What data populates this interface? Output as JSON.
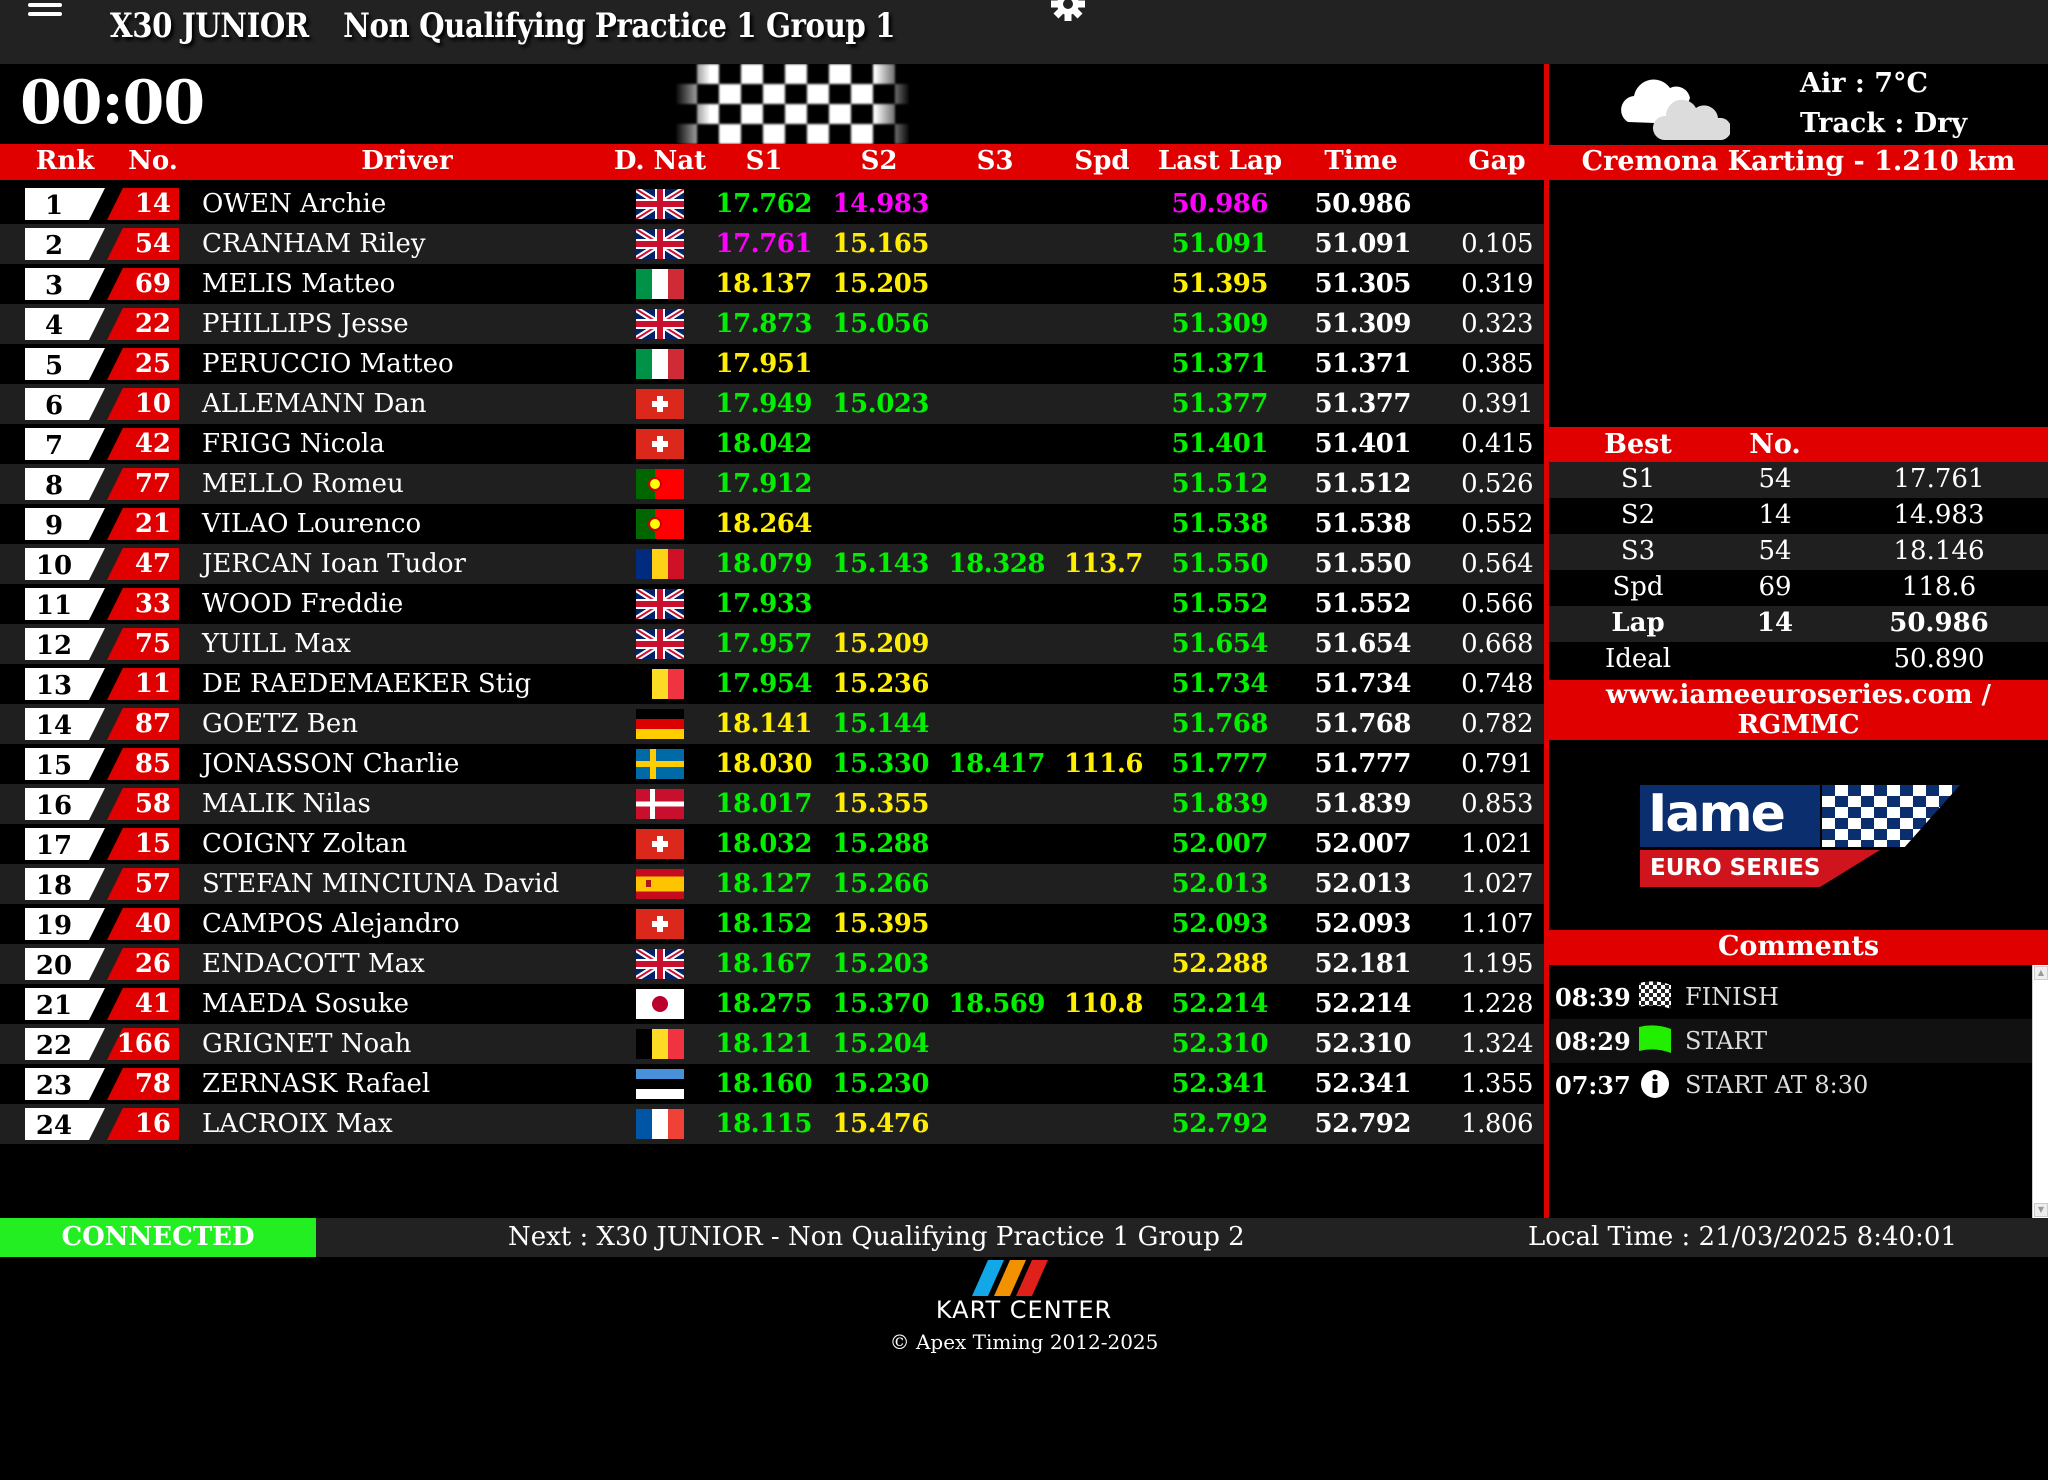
{
  "header": {
    "category": "X30 JUNIOR",
    "session": "Non Qualifying Practice 1 Group 1",
    "menu_icon": "hamburger-icon",
    "settings_icon": "gear-icon"
  },
  "timer": "00:00",
  "flag_status": "checkered-flag",
  "table": {
    "headers": {
      "rnk": "Rnk",
      "no": "No.",
      "driver": "Driver",
      "nat": "D. Nat",
      "s1": "S1",
      "s2": "S2",
      "s3": "S3",
      "spd": "Spd",
      "last": "Last Lap",
      "time": "Time",
      "gap": "Gap"
    },
    "colors": {
      "g": "#00f000",
      "y": "#ffee00",
      "m": "#ff00ff"
    },
    "rows": [
      {
        "rk": "1",
        "no": "14",
        "driver": "OWEN Archie",
        "nat": "gb",
        "s1": "17.762",
        "s1c": "g",
        "s2": "14.983",
        "s2c": "m",
        "s3": "",
        "s3c": "",
        "spd": "",
        "spdc": "",
        "last": "50.986",
        "lastc": "m",
        "time": "50.986",
        "gap": ""
      },
      {
        "rk": "2",
        "no": "54",
        "driver": "CRANHAM Riley",
        "nat": "gb",
        "s1": "17.761",
        "s1c": "m",
        "s2": "15.165",
        "s2c": "y",
        "s3": "",
        "s3c": "",
        "spd": "",
        "spdc": "",
        "last": "51.091",
        "lastc": "g",
        "time": "51.091",
        "gap": "0.105"
      },
      {
        "rk": "3",
        "no": "69",
        "driver": "MELIS Matteo",
        "nat": "it",
        "s1": "18.137",
        "s1c": "y",
        "s2": "15.205",
        "s2c": "y",
        "s3": "",
        "s3c": "",
        "spd": "",
        "spdc": "",
        "last": "51.395",
        "lastc": "y",
        "time": "51.305",
        "gap": "0.319"
      },
      {
        "rk": "4",
        "no": "22",
        "driver": "PHILLIPS Jesse",
        "nat": "gb",
        "s1": "17.873",
        "s1c": "g",
        "s2": "15.056",
        "s2c": "g",
        "s3": "",
        "s3c": "",
        "spd": "",
        "spdc": "",
        "last": "51.309",
        "lastc": "g",
        "time": "51.309",
        "gap": "0.323"
      },
      {
        "rk": "5",
        "no": "25",
        "driver": "PERUCCIO Matteo",
        "nat": "it",
        "s1": "17.951",
        "s1c": "y",
        "s2": "",
        "s2c": "",
        "s3": "",
        "s3c": "",
        "spd": "",
        "spdc": "",
        "last": "51.371",
        "lastc": "g",
        "time": "51.371",
        "gap": "0.385"
      },
      {
        "rk": "6",
        "no": "10",
        "driver": "ALLEMANN Dan",
        "nat": "ch",
        "s1": "17.949",
        "s1c": "g",
        "s2": "15.023",
        "s2c": "g",
        "s3": "",
        "s3c": "",
        "spd": "",
        "spdc": "",
        "last": "51.377",
        "lastc": "g",
        "time": "51.377",
        "gap": "0.391"
      },
      {
        "rk": "7",
        "no": "42",
        "driver": "FRIGG Nicola",
        "nat": "ch",
        "s1": "18.042",
        "s1c": "g",
        "s2": "",
        "s2c": "",
        "s3": "",
        "s3c": "",
        "spd": "",
        "spdc": "",
        "last": "51.401",
        "lastc": "g",
        "time": "51.401",
        "gap": "0.415"
      },
      {
        "rk": "8",
        "no": "77",
        "driver": "MELLO Romeu",
        "nat": "pt",
        "s1": "17.912",
        "s1c": "g",
        "s2": "",
        "s2c": "",
        "s3": "",
        "s3c": "",
        "spd": "",
        "spdc": "",
        "last": "51.512",
        "lastc": "g",
        "time": "51.512",
        "gap": "0.526"
      },
      {
        "rk": "9",
        "no": "21",
        "driver": "VILAO Lourenco",
        "nat": "pt",
        "s1": "18.264",
        "s1c": "y",
        "s2": "",
        "s2c": "",
        "s3": "",
        "s3c": "",
        "spd": "",
        "spdc": "",
        "last": "51.538",
        "lastc": "g",
        "time": "51.538",
        "gap": "0.552"
      },
      {
        "rk": "10",
        "no": "47",
        "driver": "JERCAN Ioan Tudor",
        "nat": "ro",
        "s1": "18.079",
        "s1c": "g",
        "s2": "15.143",
        "s2c": "g",
        "s3": "18.328",
        "s3c": "g",
        "spd": "113.7",
        "spdc": "y",
        "last": "51.550",
        "lastc": "g",
        "time": "51.550",
        "gap": "0.564"
      },
      {
        "rk": "11",
        "no": "33",
        "driver": "WOOD Freddie",
        "nat": "gb",
        "s1": "17.933",
        "s1c": "g",
        "s2": "",
        "s2c": "",
        "s3": "",
        "s3c": "",
        "spd": "",
        "spdc": "",
        "last": "51.552",
        "lastc": "g",
        "time": "51.552",
        "gap": "0.566"
      },
      {
        "rk": "12",
        "no": "75",
        "driver": "YUILL Max",
        "nat": "gb",
        "s1": "17.957",
        "s1c": "g",
        "s2": "15.209",
        "s2c": "y",
        "s3": "",
        "s3c": "",
        "spd": "",
        "spdc": "",
        "last": "51.654",
        "lastc": "g",
        "time": "51.654",
        "gap": "0.668"
      },
      {
        "rk": "13",
        "no": "11",
        "driver": "DE RAEDEMAEKER Stig",
        "nat": "be",
        "s1": "17.954",
        "s1c": "g",
        "s2": "15.236",
        "s2c": "y",
        "s3": "",
        "s3c": "",
        "spd": "",
        "spdc": "",
        "last": "51.734",
        "lastc": "g",
        "time": "51.734",
        "gap": "0.748"
      },
      {
        "rk": "14",
        "no": "87",
        "driver": "GOETZ Ben",
        "nat": "de",
        "s1": "18.141",
        "s1c": "y",
        "s2": "15.144",
        "s2c": "g",
        "s3": "",
        "s3c": "",
        "spd": "",
        "spdc": "",
        "last": "51.768",
        "lastc": "g",
        "time": "51.768",
        "gap": "0.782"
      },
      {
        "rk": "15",
        "no": "85",
        "driver": "JONASSON Charlie",
        "nat": "se",
        "s1": "18.030",
        "s1c": "y",
        "s2": "15.330",
        "s2c": "g",
        "s3": "18.417",
        "s3c": "g",
        "spd": "111.6",
        "spdc": "y",
        "last": "51.777",
        "lastc": "g",
        "time": "51.777",
        "gap": "0.791"
      },
      {
        "rk": "16",
        "no": "58",
        "driver": "MALIK Nilas",
        "nat": "dk",
        "s1": "18.017",
        "s1c": "g",
        "s2": "15.355",
        "s2c": "y",
        "s3": "",
        "s3c": "",
        "spd": "",
        "spdc": "",
        "last": "51.839",
        "lastc": "g",
        "time": "51.839",
        "gap": "0.853"
      },
      {
        "rk": "17",
        "no": "15",
        "driver": "COIGNY Zoltan",
        "nat": "ch",
        "s1": "18.032",
        "s1c": "g",
        "s2": "15.288",
        "s2c": "g",
        "s3": "",
        "s3c": "",
        "spd": "",
        "spdc": "",
        "last": "52.007",
        "lastc": "g",
        "time": "52.007",
        "gap": "1.021"
      },
      {
        "rk": "18",
        "no": "57",
        "driver": "STEFAN MINCIUNA David",
        "nat": "es",
        "s1": "18.127",
        "s1c": "g",
        "s2": "15.266",
        "s2c": "g",
        "s3": "",
        "s3c": "",
        "spd": "",
        "spdc": "",
        "last": "52.013",
        "lastc": "g",
        "time": "52.013",
        "gap": "1.027"
      },
      {
        "rk": "19",
        "no": "40",
        "driver": "CAMPOS Alejandro",
        "nat": "ch",
        "s1": "18.152",
        "s1c": "g",
        "s2": "15.395",
        "s2c": "y",
        "s3": "",
        "s3c": "",
        "spd": "",
        "spdc": "",
        "last": "52.093",
        "lastc": "g",
        "time": "52.093",
        "gap": "1.107"
      },
      {
        "rk": "20",
        "no": "26",
        "driver": "ENDACOTT Max",
        "nat": "gb",
        "s1": "18.167",
        "s1c": "g",
        "s2": "15.203",
        "s2c": "g",
        "s3": "",
        "s3c": "",
        "spd": "",
        "spdc": "",
        "last": "52.288",
        "lastc": "y",
        "time": "52.181",
        "gap": "1.195"
      },
      {
        "rk": "21",
        "no": "41",
        "driver": "MAEDA Sosuke",
        "nat": "jp",
        "s1": "18.275",
        "s1c": "g",
        "s2": "15.370",
        "s2c": "g",
        "s3": "18.569",
        "s3c": "g",
        "spd": "110.8",
        "spdc": "y",
        "last": "52.214",
        "lastc": "g",
        "time": "52.214",
        "gap": "1.228"
      },
      {
        "rk": "22",
        "no": "166",
        "driver": "GRIGNET Noah",
        "nat": "be",
        "s1": "18.121",
        "s1c": "g",
        "s2": "15.204",
        "s2c": "g",
        "s3": "",
        "s3c": "",
        "spd": "",
        "spdc": "",
        "last": "52.310",
        "lastc": "g",
        "time": "52.310",
        "gap": "1.324"
      },
      {
        "rk": "23",
        "no": "78",
        "driver": "ZERNASK Rafael",
        "nat": "ee",
        "s1": "18.160",
        "s1c": "g",
        "s2": "15.230",
        "s2c": "g",
        "s3": "",
        "s3c": "",
        "spd": "",
        "spdc": "",
        "last": "52.341",
        "lastc": "g",
        "time": "52.341",
        "gap": "1.355"
      },
      {
        "rk": "24",
        "no": "16",
        "driver": "LACROIX Max",
        "nat": "fr",
        "s1": "18.115",
        "s1c": "g",
        "s2": "15.476",
        "s2c": "y",
        "s3": "",
        "s3c": "",
        "spd": "",
        "spdc": "",
        "last": "52.792",
        "lastc": "g",
        "time": "52.792",
        "gap": "1.806"
      }
    ]
  },
  "weather": {
    "icon": "cloudy-icon",
    "air": "Air : 7°C",
    "track": "Track : Dry"
  },
  "circuit": "Cremona Karting - 1.210 km",
  "best": {
    "headers": {
      "best": "Best",
      "no": "No."
    },
    "rows": [
      {
        "label": "S1",
        "no": "54",
        "value": "17.761",
        "bold": false
      },
      {
        "label": "S2",
        "no": "14",
        "value": "14.983",
        "bold": false
      },
      {
        "label": "S3",
        "no": "54",
        "value": "18.146",
        "bold": false
      },
      {
        "label": "Spd",
        "no": "69",
        "value": "118.6",
        "bold": false
      },
      {
        "label": "Lap",
        "no": "14",
        "value": "50.986",
        "bold": true
      },
      {
        "label": "Ideal",
        "no": "",
        "value": "50.890",
        "bold": false
      }
    ]
  },
  "website": "www.iameeuroseries.com / RGMMC",
  "sponsor_logo": {
    "line1": "lame",
    "line2": "EURO SERIES"
  },
  "comments": {
    "title": "Comments",
    "items": [
      {
        "time": "08:39",
        "icon": "checkered-flag-icon",
        "text": "FINISH"
      },
      {
        "time": "08:29",
        "icon": "green-flag-icon",
        "text": "START"
      },
      {
        "time": "07:37",
        "icon": "info-icon",
        "text": "START AT 8:30"
      }
    ]
  },
  "status": {
    "connection": "CONNECTED",
    "next": "Next : X30 JUNIOR - Non Qualifying Practice 1 Group 2",
    "local_time": "Local Time : 21/03/2025 8:40:01",
    "connection_color": "#22ee22"
  },
  "footer": {
    "logo_text": "KART CENTER",
    "copyright": "© Apex Timing 2012-2025"
  }
}
